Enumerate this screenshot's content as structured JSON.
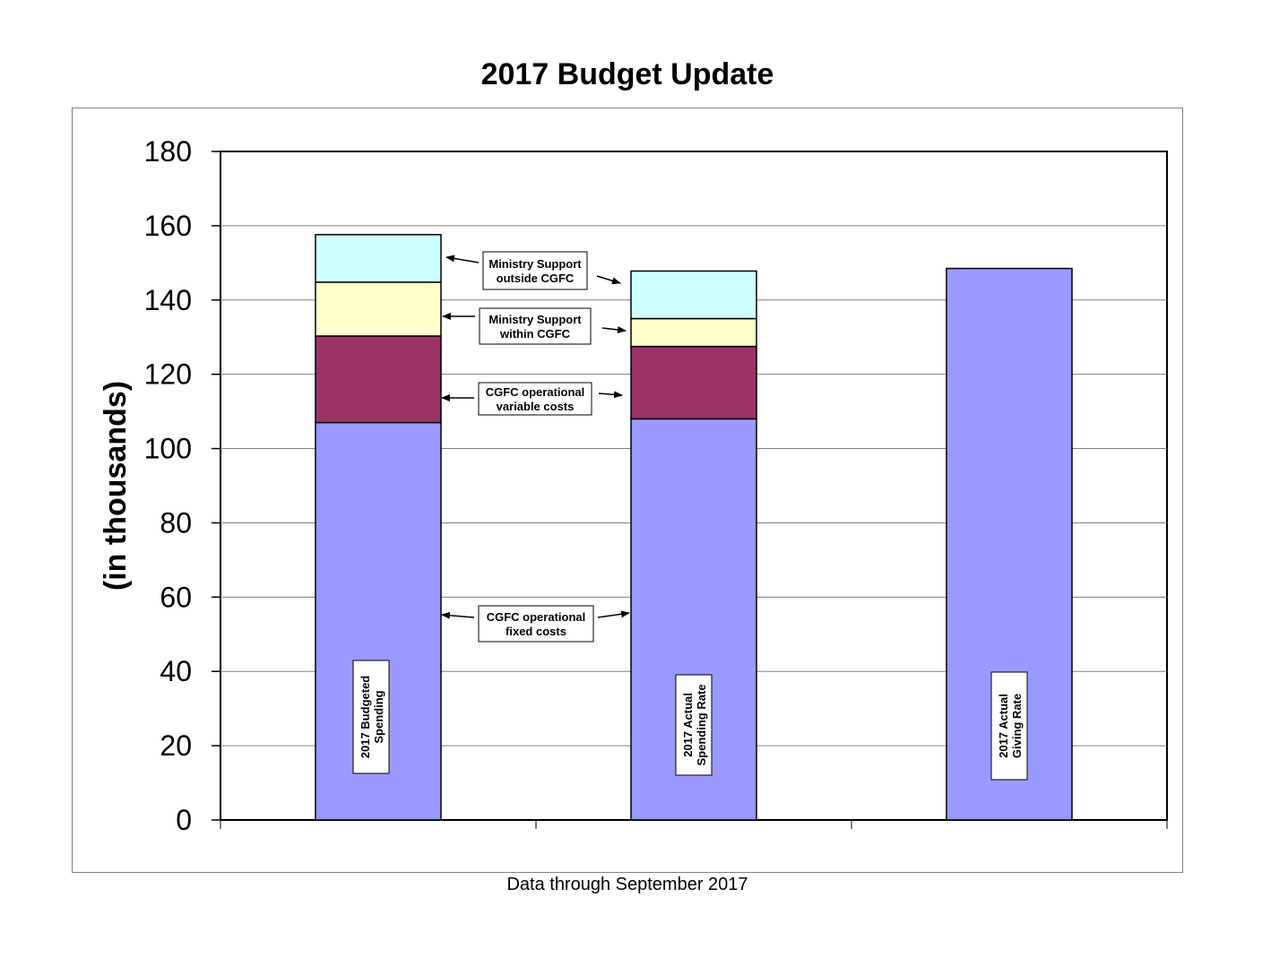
{
  "title": "2017 Budget Update",
  "footnote": "Data through September 2017",
  "chart_data": {
    "type": "bar",
    "stacked": true,
    "title": "2017 Budget Update",
    "xlabel": "",
    "ylabel": "(in thousands)",
    "ylim": [
      0,
      180
    ],
    "yticks": [
      0,
      20,
      40,
      60,
      80,
      100,
      120,
      140,
      160,
      180
    ],
    "grid": true,
    "categories": [
      "2017 Budgeted Spending",
      "2017 Actual Spending Rate",
      "2017 Actual Giving Rate"
    ],
    "bar_labels": [
      [
        "2017  Budgeted",
        "Spending"
      ],
      [
        "2017 Actual",
        "Spending Rate"
      ],
      [
        "2017 Actual",
        "Giving Rate"
      ]
    ],
    "series": [
      {
        "name": "CGFC operational fixed costs",
        "color": "#9999ff",
        "values": [
          107,
          108,
          148.5
        ]
      },
      {
        "name": "CGFC operational variable costs",
        "color": "#993366",
        "values": [
          23.3,
          19.5,
          0
        ]
      },
      {
        "name": "Ministry Support within CGFC",
        "color": "#ffffcc",
        "values": [
          14.5,
          7.5,
          0
        ]
      },
      {
        "name": "Ministry Support outside CGFC",
        "color": "#ccffff",
        "values": [
          12.8,
          12.8,
          0
        ]
      }
    ],
    "annotations": [
      {
        "lines": [
          "Ministry Support",
          "outside CGFC"
        ]
      },
      {
        "lines": [
          "Ministry Support",
          "within  CGFC"
        ]
      },
      {
        "lines": [
          "CGFC operational",
          "variable costs"
        ]
      },
      {
        "lines": [
          "CGFC operational",
          "fixed costs"
        ]
      }
    ]
  }
}
